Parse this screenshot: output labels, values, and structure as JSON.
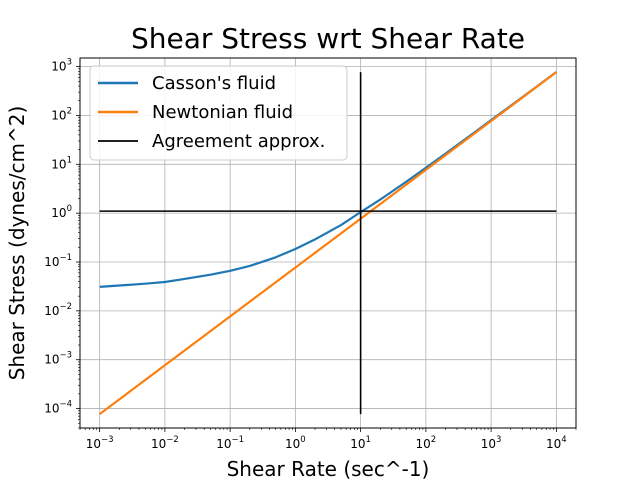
{
  "chart_data": {
    "type": "line",
    "title": "Shear Stress wrt Shear Rate",
    "xlabel": "Shear Rate (sec^-1)",
    "ylabel": "Shear Stress (dynes/cm^2)",
    "xscale": "log",
    "yscale": "log",
    "xlim": [
      0.0005,
      20000
    ],
    "ylim": [
      4e-05,
      1500
    ],
    "grid": true,
    "legend_location": "upper left",
    "xticks": [
      {
        "base": "10",
        "exp": "−3",
        "value": 0.001
      },
      {
        "base": "10",
        "exp": "−2",
        "value": 0.01
      },
      {
        "base": "10",
        "exp": "−1",
        "value": 0.1
      },
      {
        "base": "10",
        "exp": "0",
        "value": 1
      },
      {
        "base": "10",
        "exp": "1",
        "value": 10
      },
      {
        "base": "10",
        "exp": "2",
        "value": 100
      },
      {
        "base": "10",
        "exp": "3",
        "value": 1000
      },
      {
        "base": "10",
        "exp": "4",
        "value": 10000
      }
    ],
    "yticks": [
      {
        "base": "10",
        "exp": "−4",
        "value": 0.0001
      },
      {
        "base": "10",
        "exp": "−3",
        "value": 0.001
      },
      {
        "base": "10",
        "exp": "−2",
        "value": 0.01
      },
      {
        "base": "10",
        "exp": "−1",
        "value": 0.1
      },
      {
        "base": "10",
        "exp": "0",
        "value": 1
      },
      {
        "base": "10",
        "exp": "1",
        "value": 10
      },
      {
        "base": "10",
        "exp": "2",
        "value": 100
      },
      {
        "base": "10",
        "exp": "3",
        "value": 1000
      }
    ],
    "series": [
      {
        "name": "Casson's fluid",
        "color": "#1f77b4",
        "x": [
          0.001,
          0.002,
          0.005,
          0.01,
          0.02,
          0.05,
          0.1,
          0.2,
          0.5,
          1,
          2,
          5,
          10,
          20,
          50,
          100,
          200,
          500,
          1000,
          2000,
          5000,
          10000
        ],
        "y": [
          0.031,
          0.033,
          0.036,
          0.039,
          0.045,
          0.055,
          0.066,
          0.083,
          0.125,
          0.185,
          0.29,
          0.57,
          1.05,
          1.9,
          4.4,
          8.5,
          16.5,
          40.5,
          80,
          158,
          390,
          775
        ]
      },
      {
        "name": "Newtonian fluid",
        "color": "#ff7f0e",
        "x": [
          0.001,
          10000
        ],
        "y": [
          7.7e-05,
          770
        ]
      },
      {
        "name": "Agreement approx.",
        "color": "#000000",
        "segments": [
          {
            "x": [
              0.001,
              10000
            ],
            "y": [
              1.1,
              1.1
            ]
          },
          {
            "x": [
              10,
              10
            ],
            "y": [
              7.7e-05,
              770
            ]
          }
        ]
      }
    ]
  }
}
